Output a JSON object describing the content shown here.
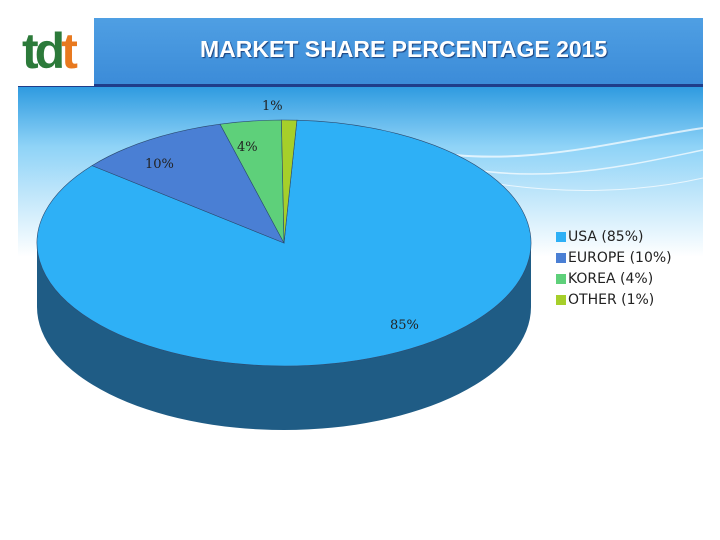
{
  "logo": {
    "part1": "t",
    "part2": "d",
    "part3": "t"
  },
  "header": {
    "title": "MARKET SHARE PERCENTAGE 2015"
  },
  "colors": {
    "header_bar": "#3b8bd8",
    "header_rule": "#1f3d8a",
    "sky_gradient_top": "#2f9be0",
    "sky_gradient_bottom": "#ffffff",
    "side": "#1f5c85"
  },
  "chart_data": {
    "type": "pie",
    "style": "3d",
    "title": "",
    "categories": [
      "USA",
      "EUROPE",
      "KOREA",
      "OTHER"
    ],
    "values": [
      85,
      10,
      4,
      1
    ],
    "data_labels": [
      "85%",
      "10%",
      "4%",
      "1%"
    ],
    "legend_labels": [
      "USA (85%)",
      "EUROPE (10%)",
      "KOREA (4%)",
      "OTHER (1%)"
    ],
    "colors": [
      "#2eb0f6",
      "#4a7fd4",
      "#5ed07a",
      "#a6cf2a"
    ],
    "legend_position": "right"
  }
}
